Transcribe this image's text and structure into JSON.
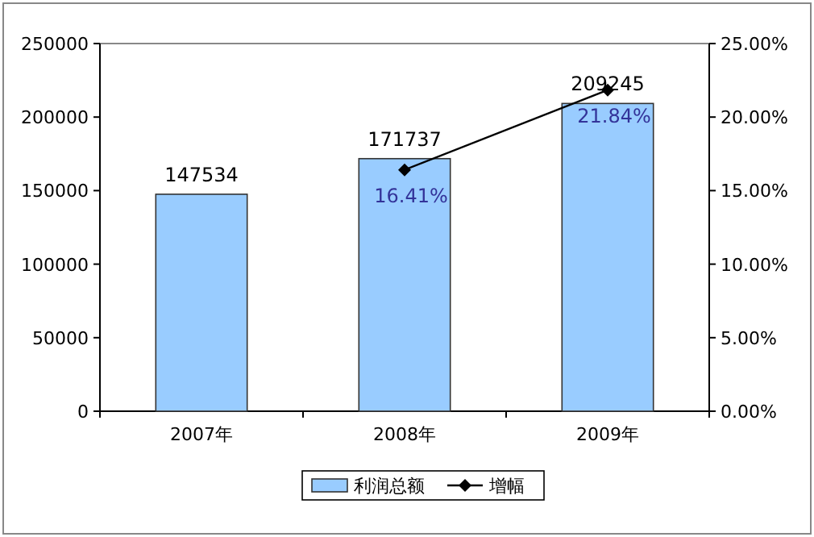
{
  "chart_data": {
    "type": "bar",
    "categories": [
      "2007年",
      "2008年",
      "2009年"
    ],
    "series": [
      {
        "name": "利润总额",
        "color": "#99ccff",
        "values": [
          147534,
          171737,
          209245
        ],
        "value_labels": [
          "147534",
          "171737",
          "209245"
        ]
      },
      {
        "name": "增幅",
        "type": "line",
        "axis": "y2",
        "color": "#000000",
        "marker": "diamond",
        "line_style": "solid",
        "values": [
          null,
          16.41,
          21.84
        ],
        "value_labels": [
          null,
          "16.41%",
          "21.84%"
        ]
      }
    ],
    "ylim": [
      0,
      250000
    ],
    "yticks": [
      0,
      50000,
      100000,
      150000,
      200000,
      250000
    ],
    "y2lim": [
      0,
      25
    ],
    "y2ticks": [
      {
        "value": 0,
        "label": "0.00%"
      },
      {
        "value": 5,
        "label": "5.00%"
      },
      {
        "value": 10,
        "label": "10.00%"
      },
      {
        "value": 15,
        "label": "15.00%"
      },
      {
        "value": 20,
        "label": "20.00%"
      },
      {
        "value": 25,
        "label": "25.00%"
      }
    ],
    "grid": false,
    "legend": "bottom"
  }
}
